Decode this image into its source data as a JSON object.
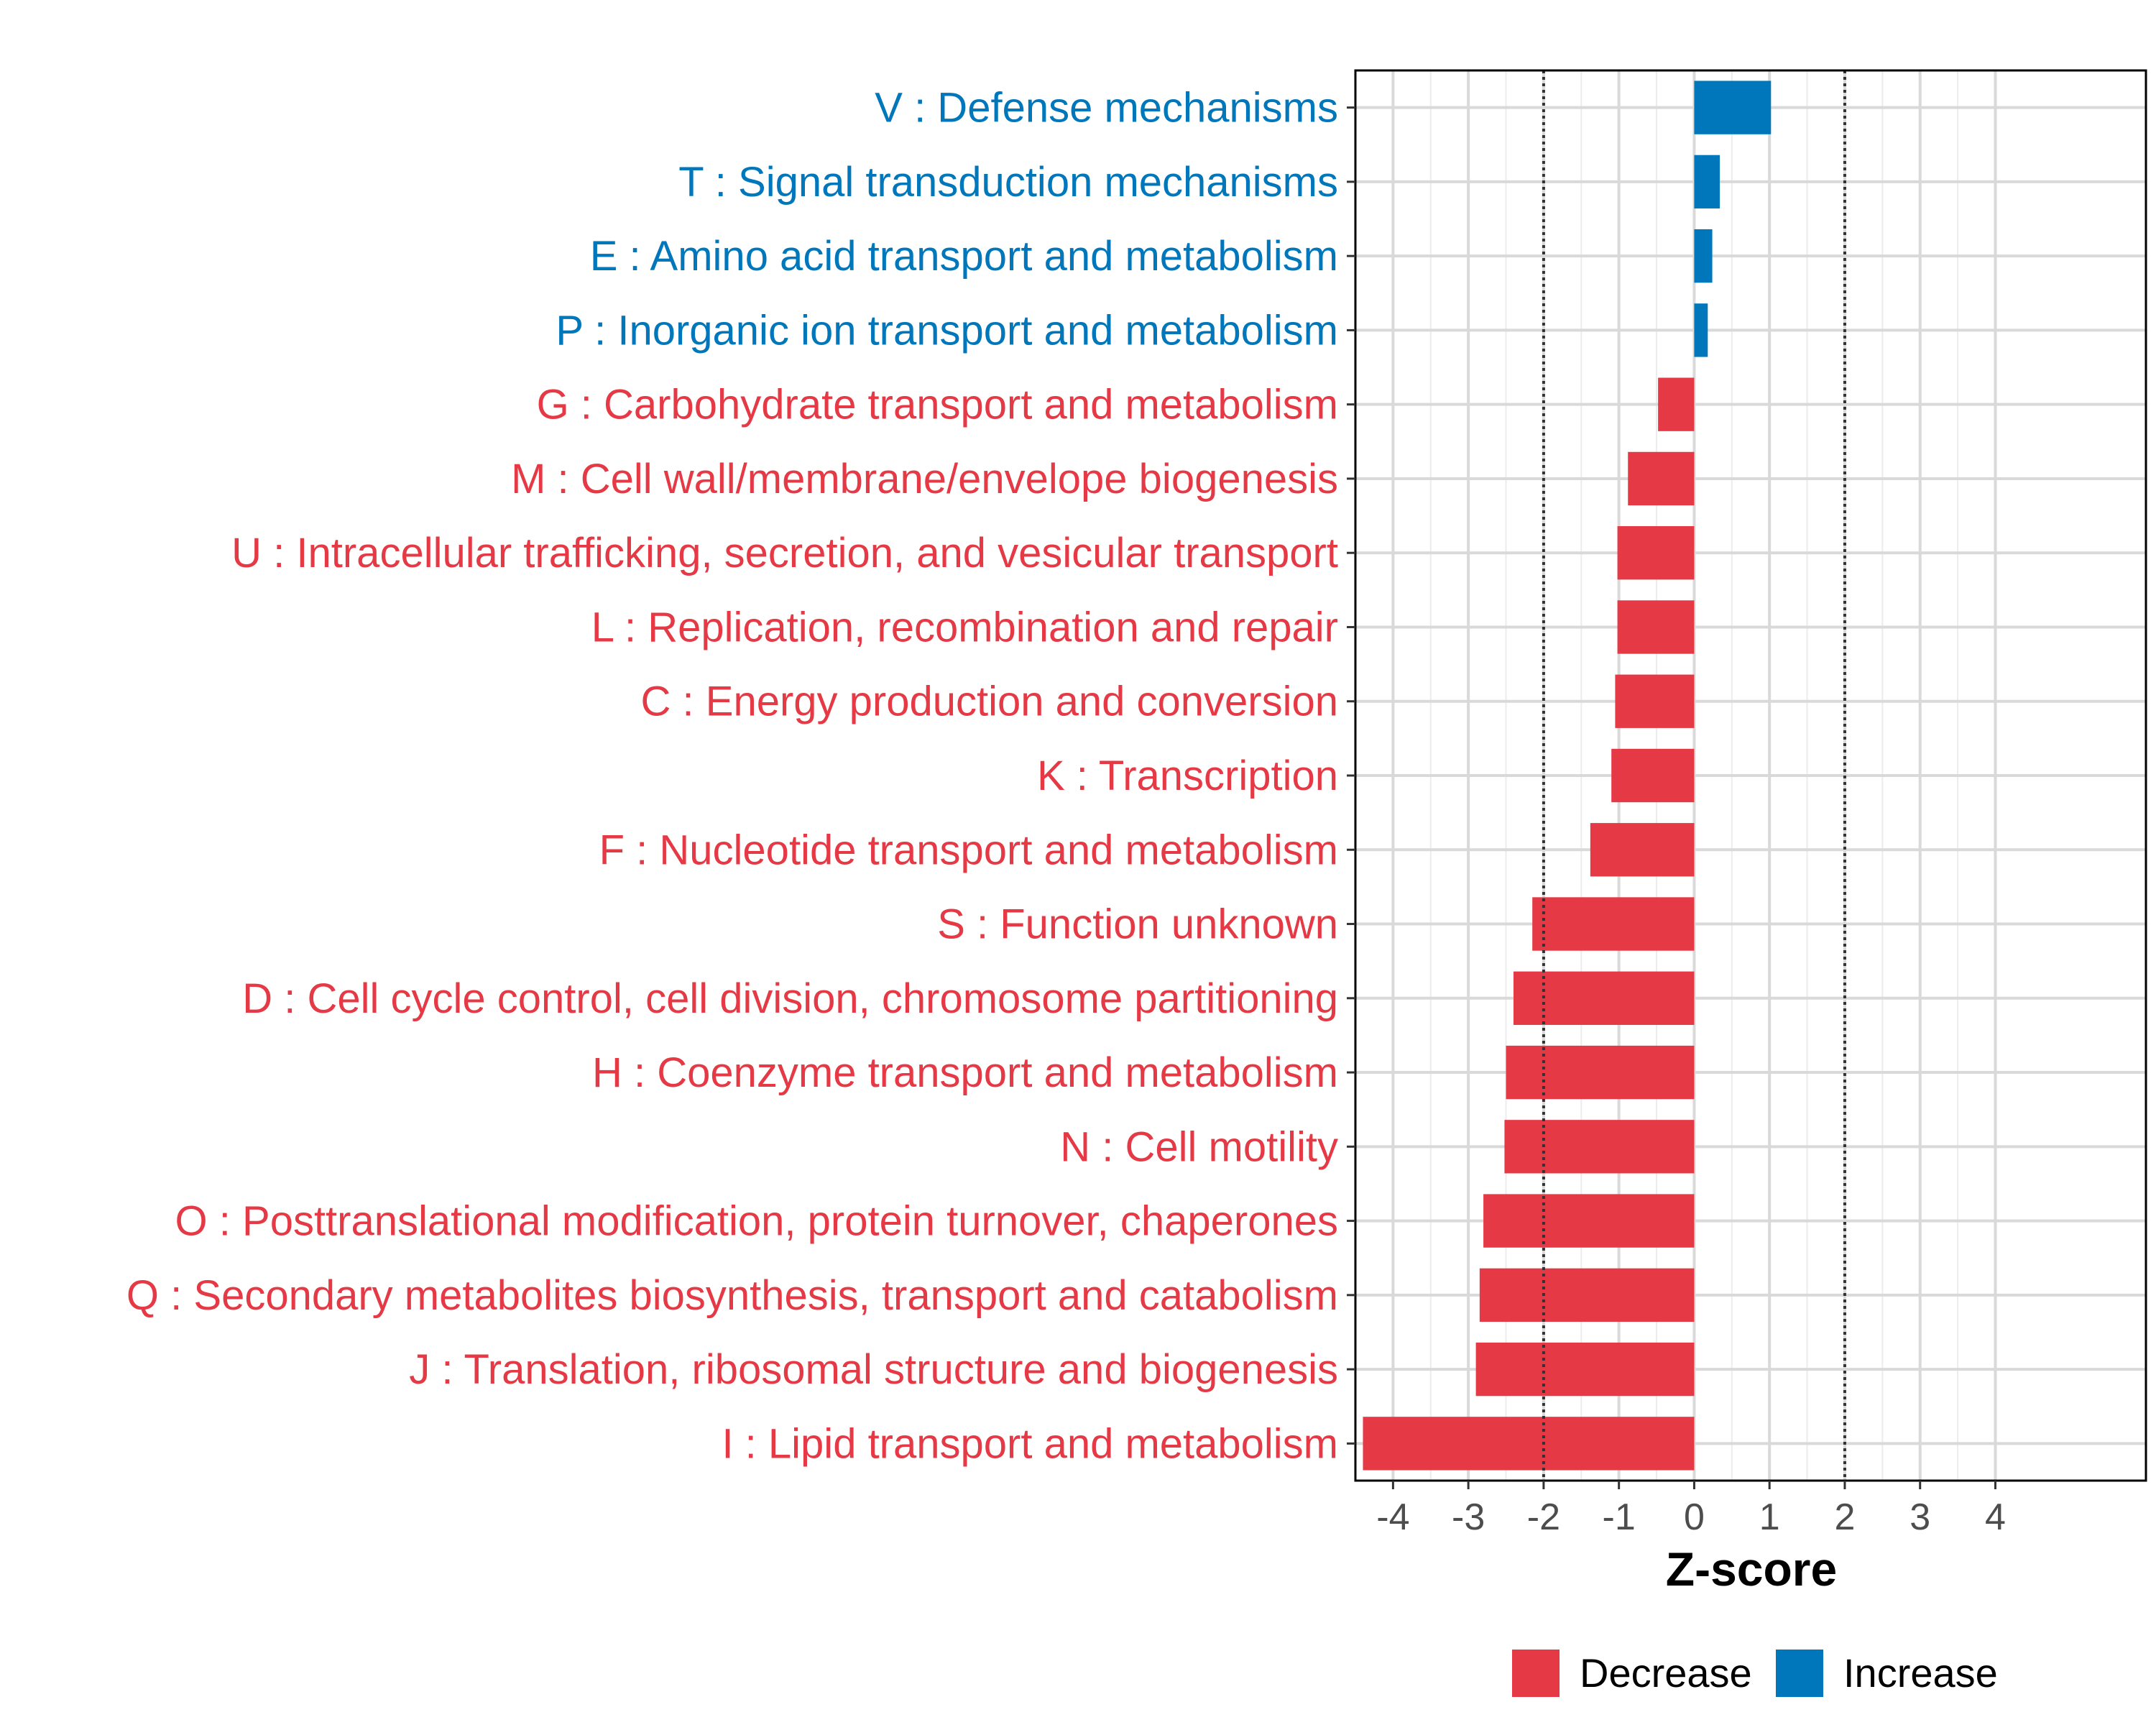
{
  "chart_data": {
    "type": "bar",
    "orientation": "horizontal",
    "title": "",
    "xlabel": "Z-score",
    "ylabel": "",
    "xlim": [
      -4.5,
      6
    ],
    "x_ticks": [
      -4,
      -3,
      -2,
      -1,
      0,
      1,
      2,
      3,
      4
    ],
    "reference_lines": [
      -2,
      2
    ],
    "grid": true,
    "legend_position": "bottom",
    "colors": {
      "Decrease": "#E63946",
      "Increase": "#0077BB"
    },
    "legend": [
      {
        "name": "Decrease",
        "color": "#E63946"
      },
      {
        "name": "Increase",
        "color": "#0077BB"
      }
    ],
    "bars": [
      {
        "label": "V : Defense mechanisms",
        "value": 1.02,
        "direction": "Increase"
      },
      {
        "label": "T : Signal transduction mechanisms",
        "value": 0.34,
        "direction": "Increase"
      },
      {
        "label": "E : Amino acid transport and metabolism",
        "value": 0.24,
        "direction": "Increase"
      },
      {
        "label": "P : Inorganic ion transport and metabolism",
        "value": 0.18,
        "direction": "Increase"
      },
      {
        "label": "G : Carbohydrate transport and metabolism",
        "value": -0.48,
        "direction": "Decrease"
      },
      {
        "label": "M : Cell wall/membrane/envelope biogenesis",
        "value": -0.88,
        "direction": "Decrease"
      },
      {
        "label": "U : Intracellular trafficking, secretion, and vesicular transport",
        "value": -1.02,
        "direction": "Decrease"
      },
      {
        "label": "L : Replication, recombination and repair",
        "value": -1.02,
        "direction": "Decrease"
      },
      {
        "label": "C : Energy production and conversion",
        "value": -1.05,
        "direction": "Decrease"
      },
      {
        "label": "K : Transcription",
        "value": -1.1,
        "direction": "Decrease"
      },
      {
        "label": "F : Nucleotide transport and metabolism",
        "value": -1.38,
        "direction": "Decrease"
      },
      {
        "label": "S : Function unknown",
        "value": -2.15,
        "direction": "Decrease"
      },
      {
        "label": "D : Cell cycle control, cell division, chromosome partitioning",
        "value": -2.4,
        "direction": "Decrease"
      },
      {
        "label": "H : Coenzyme transport and metabolism",
        "value": -2.5,
        "direction": "Decrease"
      },
      {
        "label": "N : Cell motility",
        "value": -2.52,
        "direction": "Decrease"
      },
      {
        "label": "O : Posttranslational modification, protein turnover, chaperones",
        "value": -2.8,
        "direction": "Decrease"
      },
      {
        "label": "Q : Secondary metabolites biosynthesis, transport and catabolism",
        "value": -2.85,
        "direction": "Decrease"
      },
      {
        "label": "J : Translation, ribosomal structure and biogenesis",
        "value": -2.9,
        "direction": "Decrease"
      },
      {
        "label": "I : Lipid transport and metabolism",
        "value": -4.4,
        "direction": "Decrease"
      }
    ]
  }
}
